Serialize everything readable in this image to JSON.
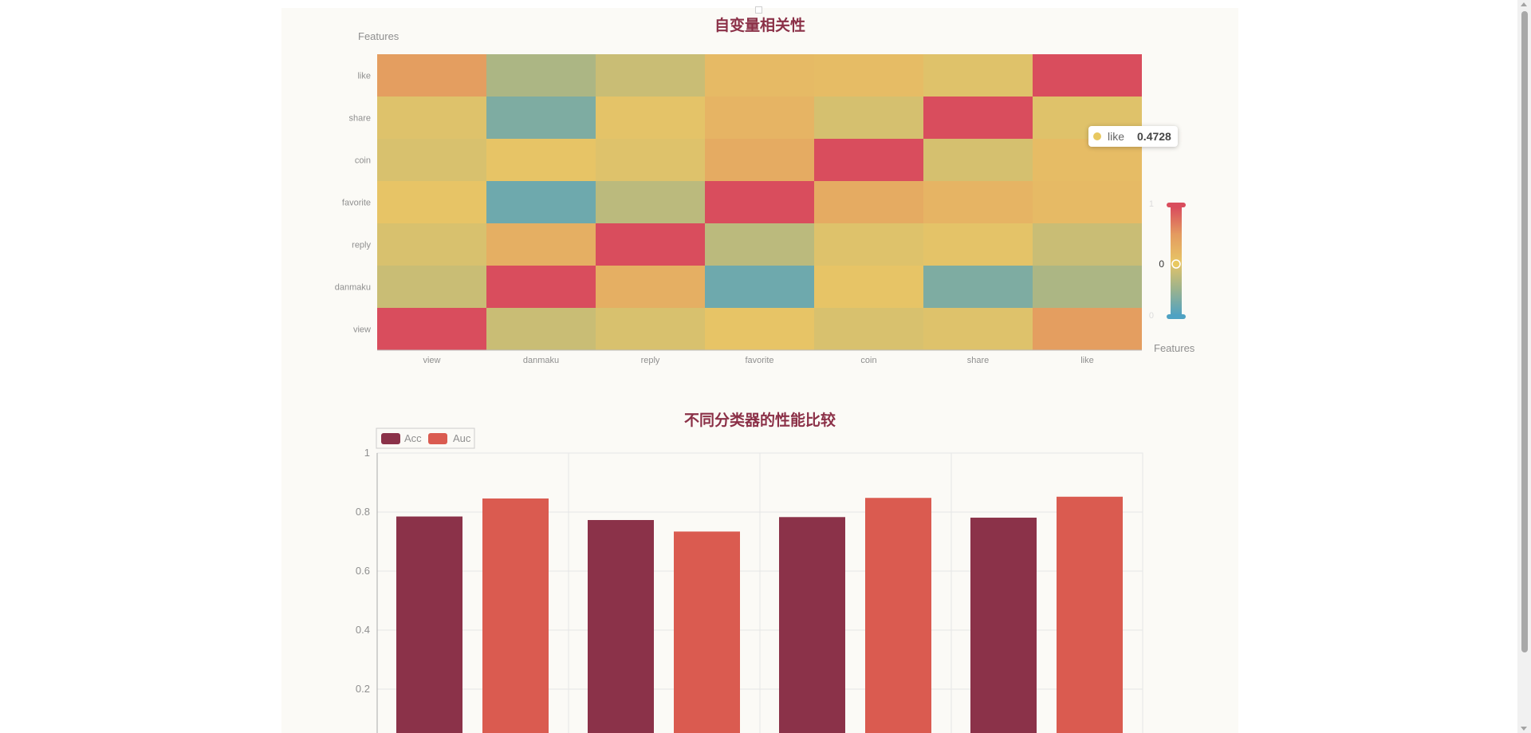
{
  "colors": {
    "panel_bg": "#fbfaf6",
    "title": "#8b3047",
    "acc": "#8b3249",
    "auc": "#da5b50",
    "axis_text": "#8f8f8f",
    "grid": "#e6e6e6",
    "heat_scale": [
      "#4fa2c3",
      "#9db38c",
      "#e7c466",
      "#e49b60",
      "#d94d5d"
    ]
  },
  "tooltip": {
    "name": "like",
    "value": "0.4728",
    "dot_color": "#e8c860"
  },
  "chart_data": [
    {
      "type": "heatmap",
      "title": "自变量相关性",
      "xlabel": "Features",
      "ylabel": "Features",
      "x_categories": [
        "view",
        "danmaku",
        "reply",
        "favorite",
        "coin",
        "share",
        "like"
      ],
      "y_categories": [
        "view",
        "danmaku",
        "reply",
        "favorite",
        "coin",
        "share",
        "like"
      ],
      "values": [
        [
          1.0,
          0.4,
          0.45,
          0.5,
          0.45,
          0.47,
          0.73
        ],
        [
          0.4,
          1.0,
          0.63,
          0.1,
          0.5,
          0.15,
          0.3
        ],
        [
          0.45,
          0.63,
          1.0,
          0.35,
          0.47,
          0.49,
          0.4
        ],
        [
          0.5,
          0.1,
          0.35,
          1.0,
          0.65,
          0.6,
          0.56
        ],
        [
          0.45,
          0.5,
          0.47,
          0.65,
          1.0,
          0.44,
          0.55
        ],
        [
          0.47,
          0.15,
          0.49,
          0.6,
          0.44,
          1.0,
          0.4728
        ],
        [
          0.73,
          0.3,
          0.4,
          0.56,
          0.55,
          0.4728,
          1.0
        ]
      ],
      "visual_map": {
        "min": 0,
        "max": 1,
        "top_label": "1",
        "bottom_label": "0",
        "handle_label": "0"
      }
    },
    {
      "type": "bar",
      "title": "不同分类器的性能比较",
      "categories": [
        "",
        "",
        "",
        ""
      ],
      "series": [
        {
          "name": "Acc",
          "values": [
            0.785,
            0.773,
            0.783,
            0.781
          ]
        },
        {
          "name": "Auc",
          "values": [
            0.846,
            0.734,
            0.848,
            0.852
          ]
        }
      ],
      "ylim": [
        0,
        1
      ],
      "yticks": [
        "1",
        "0.8",
        "0.6",
        "0.4",
        "0.2"
      ],
      "legend_position": "top-left"
    }
  ]
}
